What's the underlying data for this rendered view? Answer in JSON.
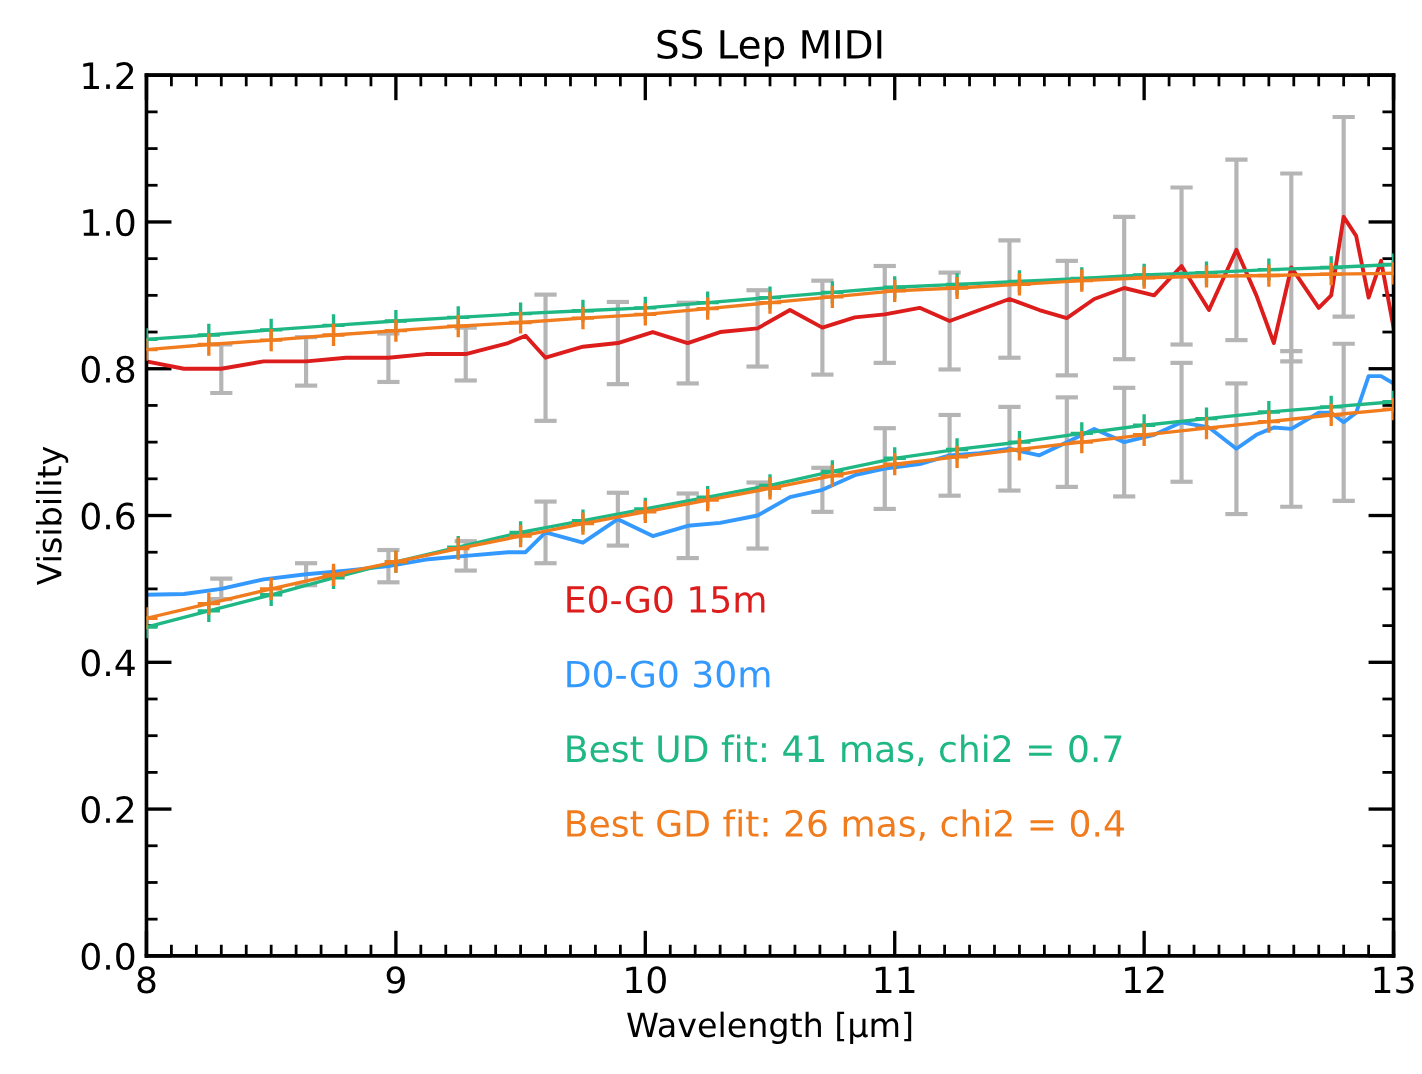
{
  "chart_data": {
    "type": "line",
    "title": "SS Lep MIDI",
    "xlabel": "Wavelength [μm]",
    "ylabel": "Visibility",
    "xlim": [
      8,
      13
    ],
    "ylim": [
      0,
      1.2
    ],
    "xticks": [
      8,
      9,
      10,
      11,
      12,
      13,
      {
        "value": 8.1,
        "label": null
      },
      {
        "value": 8.2,
        "label": null
      },
      {
        "value": 8.3,
        "label": null
      },
      {
        "value": 8.4,
        "label": null
      },
      {
        "value": 8.5,
        "label": null
      },
      {
        "value": 8.6,
        "label": null
      },
      {
        "value": 8.7,
        "label": null
      },
      {
        "value": 8.8,
        "label": null
      },
      {
        "value": 8.9,
        "label": null
      },
      {
        "value": 9.1,
        "label": null
      },
      {
        "value": 9.2,
        "label": null
      },
      {
        "value": 9.3,
        "label": null
      },
      {
        "value": 9.4,
        "label": null
      },
      {
        "value": 9.5,
        "label": null
      },
      {
        "value": 9.6,
        "label": null
      },
      {
        "value": 9.7,
        "label": null
      },
      {
        "value": 9.8,
        "label": null
      },
      {
        "value": 9.9,
        "label": null
      },
      {
        "value": 10.1,
        "label": null
      },
      {
        "value": 10.2,
        "label": null
      },
      {
        "value": 10.3,
        "label": null
      },
      {
        "value": 10.4,
        "label": null
      },
      {
        "value": 10.5,
        "label": null
      },
      {
        "value": 10.6,
        "label": null
      },
      {
        "value": 10.7,
        "label": null
      },
      {
        "value": 10.8,
        "label": null
      },
      {
        "value": 10.9,
        "label": null
      },
      {
        "value": 11.1,
        "label": null
      },
      {
        "value": 11.2,
        "label": null
      },
      {
        "value": 11.3,
        "label": null
      },
      {
        "value": 11.4,
        "label": null
      },
      {
        "value": 11.5,
        "label": null
      },
      {
        "value": 11.6,
        "label": null
      },
      {
        "value": 11.7,
        "label": null
      },
      {
        "value": 11.8,
        "label": null
      },
      {
        "value": 11.9,
        "label": null
      },
      {
        "value": 12.1,
        "label": null
      },
      {
        "value": 12.2,
        "label": null
      },
      {
        "value": 12.3,
        "label": null
      },
      {
        "value": 12.4,
        "label": null
      },
      {
        "value": 12.5,
        "label": null
      },
      {
        "value": 12.6,
        "label": null
      },
      {
        "value": 12.7,
        "label": null
      },
      {
        "value": 12.8,
        "label": null
      },
      {
        "value": 12.9,
        "label": null
      }
    ],
    "yticks": [
      {
        "value": 0,
        "label": "0.0"
      },
      0.2,
      0.4,
      0.6,
      0.8,
      {
        "value": 1,
        "label": "1.0"
      },
      1.2,
      {
        "value": 0.05,
        "label": null
      },
      {
        "value": 0.1,
        "label": null
      },
      {
        "value": 0.15,
        "label": null
      },
      {
        "value": 0.25,
        "label": null
      },
      {
        "value": 0.3,
        "label": null
      },
      {
        "value": 0.35,
        "label": null
      },
      {
        "value": 0.45,
        "label": null
      },
      {
        "value": 0.5,
        "label": null
      },
      {
        "value": 0.55,
        "label": null
      },
      {
        "value": 0.65,
        "label": null
      },
      {
        "value": 0.7,
        "label": null
      },
      {
        "value": 0.75,
        "label": null
      },
      {
        "value": 0.85,
        "label": null
      },
      {
        "value": 0.9,
        "label": null
      },
      {
        "value": 0.95,
        "label": null
      },
      {
        "value": 1.05,
        "label": null
      },
      {
        "value": 1.1,
        "label": null
      },
      {
        "value": 1.15,
        "label": null
      }
    ],
    "grid": false,
    "legend": "bottom",
    "series": [
      {
        "name": "E0-G0 15m",
        "color": "#dd1c1c",
        "marker": "none",
        "x": [
          8.0,
          8.15,
          8.3,
          8.47,
          8.64,
          8.8,
          8.97,
          9.12,
          9.28,
          9.45,
          9.52,
          9.6,
          9.75,
          9.89,
          10.03,
          10.17,
          10.3,
          10.45,
          10.58,
          10.71,
          10.84,
          10.96,
          11.1,
          11.22,
          11.34,
          11.46,
          11.58,
          11.69,
          11.8,
          11.92,
          12.04,
          12.15,
          12.26,
          12.37,
          12.45,
          12.52,
          12.59,
          12.7,
          12.75,
          12.8,
          12.85,
          12.9,
          12.95,
          13.0
        ],
        "values": [
          0.81,
          0.8,
          0.8,
          0.81,
          0.81,
          0.815,
          0.815,
          0.82,
          0.82,
          0.835,
          0.845,
          0.815,
          0.83,
          0.835,
          0.85,
          0.835,
          0.85,
          0.855,
          0.88,
          0.856,
          0.87,
          0.874,
          0.883,
          0.865,
          0.88,
          0.895,
          0.88,
          0.869,
          0.895,
          0.91,
          0.9,
          0.94,
          0.88,
          0.962,
          0.9,
          0.835,
          0.938,
          0.883,
          0.9,
          1.007,
          0.981,
          0.897,
          0.947,
          0.856
        ],
        "errors": [
          null,
          null,
          0.033,
          null,
          0.033,
          null,
          0.033,
          null,
          0.036,
          null,
          null,
          0.086,
          null,
          0.056,
          null,
          0.055,
          null,
          0.052,
          null,
          0.064,
          null,
          0.066,
          null,
          0.066,
          null,
          0.08,
          null,
          0.078,
          null,
          0.097,
          null,
          0.107,
          null,
          0.123,
          null,
          null,
          0.128,
          null,
          null,
          0.136,
          null,
          null,
          null,
          null
        ]
      },
      {
        "name": "D0-G0 30m",
        "color": "#3399ff",
        "marker": "none",
        "x": [
          8.0,
          8.15,
          8.3,
          8.47,
          8.64,
          8.8,
          8.97,
          9.12,
          9.28,
          9.45,
          9.52,
          9.6,
          9.75,
          9.89,
          10.03,
          10.17,
          10.3,
          10.45,
          10.58,
          10.71,
          10.84,
          10.96,
          11.1,
          11.22,
          11.34,
          11.46,
          11.58,
          11.69,
          11.8,
          11.92,
          12.04,
          12.15,
          12.26,
          12.37,
          12.45,
          12.52,
          12.59,
          12.7,
          12.75,
          12.8,
          12.85,
          12.9,
          12.95,
          13.0
        ],
        "values": [
          0.492,
          0.493,
          0.5,
          0.513,
          0.52,
          0.525,
          0.531,
          0.54,
          0.545,
          0.55,
          0.55,
          0.577,
          0.563,
          0.595,
          0.572,
          0.586,
          0.59,
          0.6,
          0.625,
          0.635,
          0.655,
          0.664,
          0.67,
          0.682,
          0.685,
          0.691,
          0.682,
          0.7,
          0.718,
          0.7,
          0.71,
          0.727,
          0.72,
          0.691,
          0.71,
          0.72,
          0.718,
          0.74,
          0.74,
          0.727,
          0.74,
          0.79,
          0.79,
          0.78
        ],
        "errors": [
          null,
          null,
          0.014,
          null,
          0.015,
          null,
          0.022,
          null,
          0.02,
          null,
          null,
          0.042,
          null,
          0.036,
          null,
          0.044,
          null,
          0.045,
          null,
          0.03,
          null,
          0.055,
          null,
          0.055,
          null,
          0.057,
          null,
          0.061,
          null,
          0.074,
          null,
          0.081,
          null,
          0.089,
          null,
          null,
          0.106,
          null,
          null,
          0.107,
          null,
          null,
          null,
          null
        ]
      },
      {
        "name": "Best UD fit: 41 mas, chi2 = 0.7",
        "color": "#1fb885",
        "marker": "cross",
        "x": [
          8.0,
          8.25,
          8.5,
          8.75,
          9.0,
          9.25,
          9.5,
          9.75,
          10.0,
          10.25,
          10.5,
          10.75,
          11.0,
          11.25,
          11.5,
          11.75,
          12.0,
          12.25,
          12.5,
          12.75,
          13.0
        ],
        "values": [
          0.84,
          0.846,
          0.853,
          0.859,
          0.865,
          0.87,
          0.875,
          0.879,
          0.883,
          0.89,
          0.897,
          0.904,
          0.911,
          0.915,
          0.919,
          0.923,
          0.928,
          0.931,
          0.935,
          0.938,
          0.942
        ]
      },
      {
        "color": "#1fb885",
        "marker": "cross",
        "x": [
          8.0,
          8.25,
          8.5,
          8.75,
          9.0,
          9.25,
          9.5,
          9.75,
          10.0,
          10.25,
          10.5,
          10.75,
          11.0,
          11.25,
          11.5,
          11.75,
          12.0,
          12.25,
          12.5,
          12.75,
          13.0
        ],
        "values": [
          0.448,
          0.47,
          0.492,
          0.515,
          0.537,
          0.557,
          0.577,
          0.593,
          0.609,
          0.625,
          0.641,
          0.66,
          0.678,
          0.69,
          0.7,
          0.712,
          0.723,
          0.732,
          0.741,
          0.748,
          0.755
        ]
      },
      {
        "name": "Best GD fit: 26 mas, chi2 = 0.4",
        "color": "#f07c1e",
        "marker": "cross",
        "x": [
          8.0,
          8.25,
          8.5,
          8.75,
          9.0,
          9.25,
          9.5,
          9.75,
          10.0,
          10.25,
          10.5,
          10.75,
          11.0,
          11.25,
          11.5,
          11.75,
          12.0,
          12.25,
          12.5,
          12.75,
          13.0
        ],
        "values": [
          0.826,
          0.833,
          0.839,
          0.846,
          0.852,
          0.858,
          0.863,
          0.869,
          0.874,
          0.882,
          0.89,
          0.898,
          0.906,
          0.91,
          0.915,
          0.92,
          0.924,
          0.926,
          0.927,
          0.929,
          0.93
        ]
      },
      {
        "color": "#f07c1e",
        "marker": "cross",
        "x": [
          8.0,
          8.25,
          8.5,
          8.75,
          9.0,
          9.25,
          9.5,
          9.75,
          10.0,
          10.25,
          10.5,
          10.75,
          11.0,
          11.25,
          11.5,
          11.75,
          12.0,
          12.25,
          12.5,
          12.75,
          13.0
        ],
        "values": [
          0.46,
          0.48,
          0.5,
          0.519,
          0.537,
          0.555,
          0.572,
          0.589,
          0.605,
          0.621,
          0.637,
          0.654,
          0.67,
          0.68,
          0.69,
          0.7,
          0.71,
          0.719,
          0.728,
          0.737,
          0.745
        ]
      }
    ]
  }
}
